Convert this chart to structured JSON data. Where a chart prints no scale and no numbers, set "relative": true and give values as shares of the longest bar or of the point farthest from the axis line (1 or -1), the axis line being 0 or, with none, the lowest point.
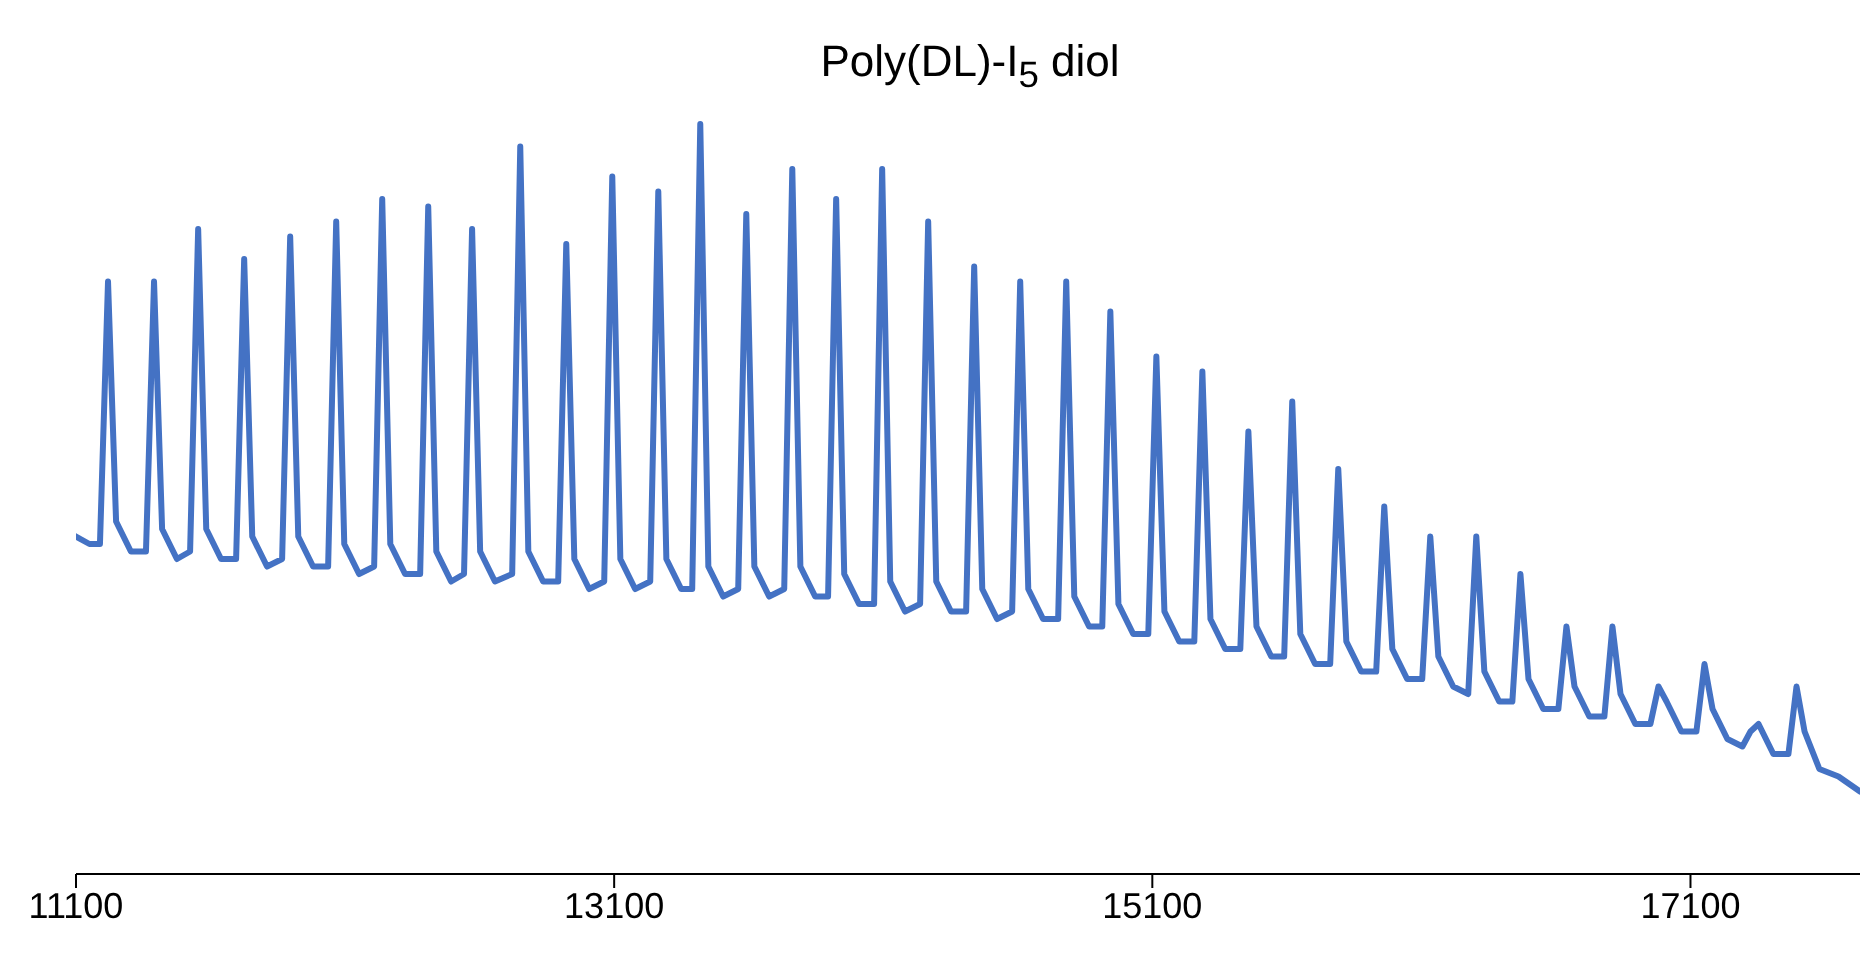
{
  "chart_data": {
    "type": "line",
    "title": "Poly(DL)-I$_{5}$ diol",
    "relative": true,
    "xlim": [
      11100,
      17730
    ],
    "xticks": [
      11100,
      13100,
      15100,
      17100
    ],
    "grid": false,
    "legend": false,
    "marker": "none",
    "line_style": "solid",
    "series": [
      {
        "color": "#4472c4",
        "x": [
          11100,
          11150,
          11189,
          11219,
          11249,
          11304,
          11360,
          11390,
          11420,
          11475,
          11524,
          11554,
          11584,
          11639,
          11695,
          11725,
          11755,
          11810,
          11866,
          11896,
          11926,
          11981,
          12037,
          12067,
          12097,
          12152,
          12208,
          12238,
          12268,
          12323,
          12379,
          12409,
          12439,
          12494,
          12542,
          12572,
          12602,
          12657,
          12721,
          12751,
          12781,
          12836,
          12892,
          12922,
          12952,
          13007,
          13063,
          13093,
          13123,
          13178,
          13234,
          13264,
          13294,
          13349,
          13390,
          13420,
          13450,
          13505,
          13561,
          13591,
          13621,
          13676,
          13732,
          13762,
          13792,
          13847,
          13895,
          13925,
          13955,
          14010,
          14066,
          14096,
          14126,
          14181,
          14237,
          14267,
          14297,
          14352,
          14408,
          14438,
          14468,
          14523,
          14579,
          14609,
          14639,
          14694,
          14750,
          14780,
          14810,
          14865,
          14914,
          14944,
          14974,
          15029,
          15085,
          15115,
          15145,
          15200,
          15256,
          15286,
          15316,
          15371,
          15427,
          15457,
          15487,
          15542,
          15590,
          15620,
          15650,
          15705,
          15761,
          15791,
          15821,
          15876,
          15932,
          15962,
          15992,
          16047,
          16103,
          16133,
          16163,
          16218,
          16274,
          16304,
          16334,
          16389,
          16438,
          16468,
          16498,
          16553,
          16609,
          16639,
          16669,
          16724,
          16780,
          16810,
          16840,
          16895,
          16951,
          16981,
          17011,
          17066,
          17122,
          17152,
          17182,
          17237,
          17293,
          17323,
          17353,
          17408,
          17464,
          17494,
          17524,
          17579,
          17650,
          17730
        ],
        "values": [
          0.45,
          0.44,
          0.44,
          0.79,
          0.47,
          0.43,
          0.43,
          0.79,
          0.46,
          0.42,
          0.43,
          0.86,
          0.46,
          0.42,
          0.42,
          0.82,
          0.45,
          0.41,
          0.42,
          0.85,
          0.45,
          0.41,
          0.41,
          0.87,
          0.44,
          0.4,
          0.41,
          0.9,
          0.44,
          0.4,
          0.4,
          0.89,
          0.43,
          0.39,
          0.4,
          0.86,
          0.43,
          0.39,
          0.4,
          0.97,
          0.43,
          0.39,
          0.39,
          0.84,
          0.42,
          0.38,
          0.39,
          0.93,
          0.42,
          0.38,
          0.39,
          0.91,
          0.42,
          0.38,
          0.38,
          1,
          0.41,
          0.37,
          0.38,
          0.88,
          0.41,
          0.37,
          0.38,
          0.94,
          0.41,
          0.37,
          0.37,
          0.9,
          0.4,
          0.36,
          0.36,
          0.94,
          0.39,
          0.35,
          0.36,
          0.87,
          0.39,
          0.35,
          0.35,
          0.81,
          0.38,
          0.34,
          0.35,
          0.79,
          0.38,
          0.34,
          0.34,
          0.79,
          0.37,
          0.33,
          0.33,
          0.75,
          0.36,
          0.32,
          0.32,
          0.69,
          0.35,
          0.31,
          0.31,
          0.67,
          0.34,
          0.3,
          0.3,
          0.59,
          0.33,
          0.29,
          0.29,
          0.63,
          0.32,
          0.28,
          0.28,
          0.54,
          0.31,
          0.27,
          0.27,
          0.49,
          0.3,
          0.26,
          0.26,
          0.45,
          0.29,
          0.25,
          0.24,
          0.45,
          0.27,
          0.23,
          0.23,
          0.4,
          0.26,
          0.22,
          0.22,
          0.33,
          0.25,
          0.21,
          0.21,
          0.33,
          0.24,
          0.2,
          0.2,
          0.25,
          0.23,
          0.19,
          0.19,
          0.28,
          0.22,
          0.18,
          0.17,
          0.19,
          0.2,
          0.16,
          0.16,
          0.25,
          0.19,
          0.14,
          0.13,
          0.11
        ]
      }
    ]
  }
}
